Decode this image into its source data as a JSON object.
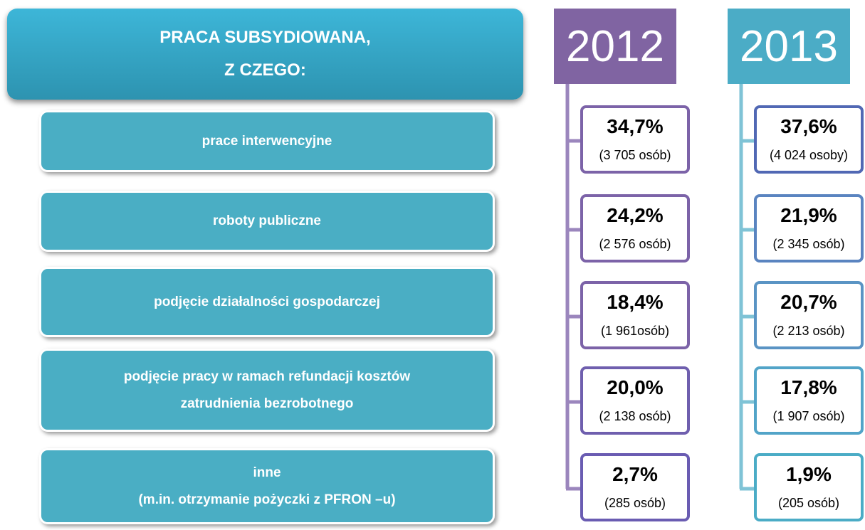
{
  "header": {
    "lines": [
      "PRACA SUBSYDIOWANA,",
      "Z CZEGO:"
    ]
  },
  "categories": [
    {
      "lines": [
        "prace interwencyjne"
      ]
    },
    {
      "lines": [
        "roboty publiczne"
      ]
    },
    {
      "lines": [
        "podjęcie działalności gospodarczej"
      ]
    },
    {
      "lines": [
        "podjęcie pracy w ramach refundacji kosztów",
        "zatrudnienia bezrobotnego"
      ]
    },
    {
      "lines": [
        "inne",
        "(m.in. otrzymanie pożyczki z PFRON –u)"
      ]
    }
  ],
  "years": [
    {
      "year": "2012",
      "items": [
        {
          "percent": "34,7%",
          "count": "(3 705 osób)"
        },
        {
          "percent": "24,2%",
          "count": "(2 576 osób)"
        },
        {
          "percent": "18,4%",
          "count": "(1 961osób)"
        },
        {
          "percent": "20,0%",
          "count": "(2 138 osób)"
        },
        {
          "percent": "2,7%",
          "count": "(285 osób)"
        }
      ]
    },
    {
      "year": "2013",
      "items": [
        {
          "percent": "37,6%",
          "count": "(4 024 osoby)"
        },
        {
          "percent": "21,9%",
          "count": "(2 345 osób)"
        },
        {
          "percent": "20,7%",
          "count": "(2 213 osób)"
        },
        {
          "percent": "17,8%",
          "count": "(1 907 osób)"
        },
        {
          "percent": "1,9%",
          "count": "(205 osób)"
        }
      ]
    }
  ]
}
